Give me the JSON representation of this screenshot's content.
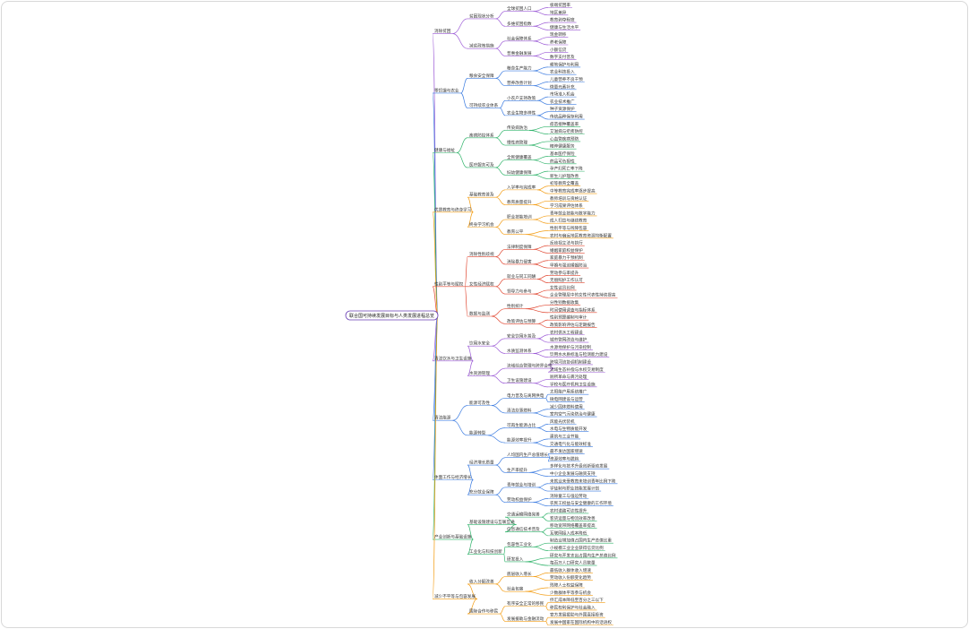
{
  "root": {
    "label": "联合国可持续发展目标与人类发展进程总览",
    "children": [
      {
        "label": "消除贫困",
        "children": [
          {
            "label": "贫困现状分析",
            "children": [
              {
                "label": "全球贫困人口",
                "children": [
                  {
                    "label": "极端贫困率"
                  },
                  {
                    "label": "地区差异"
                  }
                ]
              },
              {
                "label": "多维贫困指数",
                "children": [
                  {
                    "label": "教育剥夺程度"
                  },
                  {
                    "label": "健康与生活水平"
                  }
                ]
              }
            ]
          },
          {
            "label": "减贫政策措施",
            "children": [
              {
                "label": "社会保障体系",
                "children": [
                  {
                    "label": "现金转移"
                  },
                  {
                    "label": "养老保障"
                  }
                ]
              },
              {
                "label": "普惠金融发展",
                "children": [
                  {
                    "label": "小额信贷"
                  },
                  {
                    "label": "数字支付普及"
                  }
                ]
              }
            ]
          }
        ]
      },
      {
        "label": "零饥饿与农业",
        "children": [
          {
            "label": "粮食安全保障",
            "children": [
              {
                "label": "粮食生产能力",
                "children": [
                  {
                    "label": "耕地保护与利用"
                  },
                  {
                    "label": "农业科技投入"
                  }
                ]
              },
              {
                "label": "营养改善计划",
                "children": [
                  {
                    "label": "儿童营养不良干预"
                  },
                  {
                    "label": "微量元素补充"
                  }
                ]
              }
            ]
          },
          {
            "label": "可持续农业体系",
            "children": [
              {
                "label": "小农户支持政策",
                "children": [
                  {
                    "label": "市场准入机会"
                  },
                  {
                    "label": "农业技术推广"
                  }
                ]
              },
              {
                "label": "农业生物多样性",
                "children": [
                  {
                    "label": "种子资源保护"
                  },
                  {
                    "label": "传统品种保存利用"
                  }
                ]
              }
            ]
          }
        ]
      },
      {
        "label": "健康与福祉",
        "children": [
          {
            "label": "疾病防控体系",
            "children": [
              {
                "label": "传染病防治",
                "children": [
                  {
                    "label": "疫苗接种覆盖率"
                  },
                  {
                    "label": "艾滋病与疟疾防控"
                  }
                ]
              },
              {
                "label": "慢性病管理",
                "children": [
                  {
                    "label": "心血管疾病预防"
                  },
                  {
                    "label": "精神健康服务"
                  }
                ]
              }
            ]
          },
          {
            "label": "医疗服务可及",
            "children": [
              {
                "label": "全民健康覆盖",
                "children": [
                  {
                    "label": "基本医疗保险"
                  },
                  {
                    "label": "药品可负担性"
                  }
                ]
              },
              {
                "label": "妇幼健康保障",
                "children": [
                  {
                    "label": "孕产妇死亡率下降"
                  },
                  {
                    "label": "新生儿护理改善"
                  }
                ]
              }
            ]
          }
        ]
      },
      {
        "label": "优质教育与终身学习",
        "children": [
          {
            "label": "基础教育普及",
            "children": [
              {
                "label": "入学率与完成率",
                "children": [
                  {
                    "label": "初等教育全覆盖"
                  },
                  {
                    "label": "中等教育完成率逐步提高"
                  }
                ]
              },
              {
                "label": "教育质量提升",
                "children": [
                  {
                    "label": "教师培训与资格认证"
                  },
                  {
                    "label": "学习成果评估体系"
                  }
                ]
              }
            ]
          },
          {
            "label": "终身学习机会",
            "children": [
              {
                "label": "职业技能培训",
                "children": [
                  {
                    "label": "青年就业技能与数字能力"
                  },
                  {
                    "label": "成人扫盲与继续教育"
                  }
                ]
              },
              {
                "label": "教育公平",
                "children": [
                  {
                    "label": "性别平等与残障包容"
                  },
                  {
                    "label": "农村与偏远地区教育资源均衡配置"
                  }
                ]
              }
            ]
          }
        ]
      },
      {
        "label": "性别平等与赋权",
        "children": [
          {
            "label": "消除性别歧视",
            "children": [
              {
                "label": "法律制度保障",
                "children": [
                  {
                    "label": "反歧视立法与执行"
                  },
                  {
                    "label": "婚姻家庭权益保护"
                  }
                ]
              },
              {
                "label": "消除暴力侵害",
                "children": [
                  {
                    "label": "家庭暴力干预机制"
                  },
                  {
                    "label": "早婚与强迫婚姻防治"
                  }
                ]
              }
            ]
          },
          {
            "label": "女性经济赋权",
            "children": [
              {
                "label": "就业与同工同酬",
                "children": [
                  {
                    "label": "劳动参与率提升"
                  },
                  {
                    "label": "无偿照护工作认可"
                  }
                ]
              },
              {
                "label": "领导力与参与",
                "children": [
                  {
                    "label": "女性议员比例"
                  },
                  {
                    "label": "企业管理层中的女性代表性持续提高"
                  }
                ]
              }
            ]
          },
          {
            "label": "数据与监测",
            "children": [
              {
                "label": "性别统计",
                "children": [
                  {
                    "label": "分性别数据收集"
                  },
                  {
                    "label": "时间使用调查与指标体系"
                  }
                ]
              },
              {
                "label": "政策评估与预算",
                "children": [
                  {
                    "label": "性别预算编制与审计"
                  },
                  {
                    "label": "政策影响评估与定期报告"
                  }
                ]
              }
            ]
          }
        ]
      },
      {
        "label": "清洁饮水与卫生设施",
        "children": [
          {
            "label": "饮用水安全",
            "children": [
              {
                "label": "安全饮用水普及",
                "children": [
                  {
                    "label": "农村供水工程建设"
                  },
                  {
                    "label": "城市管网改造与维护"
                  }
                ]
              },
              {
                "label": "水质监测体系",
                "children": [
                  {
                    "label": "水源地保护与污染控制"
                  },
                  {
                    "label": "饮用水水质标准与检测能力建设"
                  }
                ]
              }
            ]
          },
          {
            "label": "水资源管理",
            "children": [
              {
                "label": "流域综合管理与跨界合作",
                "children": [
                  {
                    "label": "跨境河流协调机制建设"
                  },
                  {
                    "label": "流域生态补偿与水权交易制度"
                  }
                ]
              },
              {
                "label": "卫生设施建设",
                "children": [
                  {
                    "label": "厕所革命与粪污处理"
                  },
                  {
                    "label": "学校与医疗机构卫生设施"
                  }
                ]
              }
            ]
          }
        ]
      },
      {
        "label": "清洁能源",
        "children": [
          {
            "label": "能源可及性",
            "children": [
              {
                "label": "电力普及与离网供电",
                "children": [
                  {
                    "label": "太阳能户用系统推广"
                  },
                  {
                    "label": "微电网建设与运营"
                  }
                ]
              },
              {
                "label": "清洁炊事燃料",
                "children": [
                  {
                    "label": "减少固体燃料使用"
                  },
                  {
                    "label": "室内空气污染防治与健康"
                  }
                ]
              }
            ]
          },
          {
            "label": "能源转型",
            "children": [
              {
                "label": "可再生能源占比",
                "children": [
                  {
                    "label": "风能光伏装机"
                  },
                  {
                    "label": "水电与生物质能开发"
                  }
                ]
              },
              {
                "label": "能源效率提升",
                "children": [
                  {
                    "label": "建筑与工业节能"
                  },
                  {
                    "label": "交通电气化与能效标准"
                  }
                ]
              }
            ]
          }
        ]
      },
      {
        "label": "体面工作与经济增长",
        "children": [
          {
            "label": "经济增长质量",
            "children": [
              {
                "label": "人均国内生产总值增长",
                "children": [
                  {
                    "label": "最不发达国家增速"
                  },
                  {
                    "label": "资源效率与脱钩"
                  }
                ]
              },
              {
                "label": "生产率提升",
                "children": [
                  {
                    "label": "多样化与技术升级创新驱动发展"
                  },
                  {
                    "label": "中小企业发展与融资支持"
                  }
                ]
              }
            ]
          },
          {
            "label": "充分就业保障",
            "children": [
              {
                "label": "青年就业与培训",
                "children": [
                  {
                    "label": "未就业未受教育未培训青年比例下降"
                  },
                  {
                    "label": "学徒制与职业技能发展计划"
                  }
                ]
              },
              {
                "label": "劳动权益保护",
                "children": [
                  {
                    "label": "消除童工与强迫劳动"
                  },
                  {
                    "label": "农民工权益与安全健康的工作环境"
                  }
                ]
              }
            ]
          }
        ]
      },
      {
        "label": "产业创新与基础设施",
        "children": [
          {
            "label": "基础设施建设与互联互通",
            "children": [
              {
                "label": "交通运输网络完善",
                "children": [
                  {
                    "label": "农村道路可达性提升"
                  },
                  {
                    "label": "客货运量与物流效率改善"
                  }
                ]
              },
              {
                "label": "信息通信技术普及",
                "children": [
                  {
                    "label": "移动宽带网络覆盖率提高"
                  },
                  {
                    "label": "互联网接入成本降低"
                  }
                ]
              }
            ]
          },
          {
            "label": "工业化与科技创新",
            "children": [
              {
                "label": "包容性工业化",
                "children": [
                  {
                    "label": "制造业增加值占国内生产总值比重"
                  },
                  {
                    "label": "小规模工业企业获得信贷比例"
                  }
                ]
              },
              {
                "label": "研发投入",
                "children": [
                  {
                    "label": "研究与开发支出占国内生产总值比例"
                  },
                  {
                    "label": "每百万人口研究人员数量"
                  }
                ]
              }
            ]
          }
        ]
      },
      {
        "label": "减少不平等与包容发展",
        "children": [
          {
            "label": "收入分配改善",
            "children": [
              {
                "label": "底层收入增长",
                "children": [
                  {
                    "label": "最低收入群体收入增速"
                  },
                  {
                    "label": "劳动收入份额变化趋势"
                  }
                ]
              },
              {
                "label": "社会包容",
                "children": [
                  {
                    "label": "残障人士权益保障"
                  },
                  {
                    "label": "少数群体平等参与机会"
                  }
                ]
              }
            ]
          },
          {
            "label": "国际合作与移民",
            "children": [
              {
                "label": "有序安全正常的移民",
                "children": [
                  {
                    "label": "侨汇成本降低至百分之三以下"
                  },
                  {
                    "label": "移民权利保护与社会融入"
                  }
                ]
              },
              {
                "label": "发展援助与金融流动",
                "children": [
                  {
                    "label": "官方发展援助与外国直接投资"
                  },
                  {
                    "label": "发展中国家在国际机构中的话语权"
                  }
                ]
              }
            ]
          }
        ]
      }
    ]
  }
}
